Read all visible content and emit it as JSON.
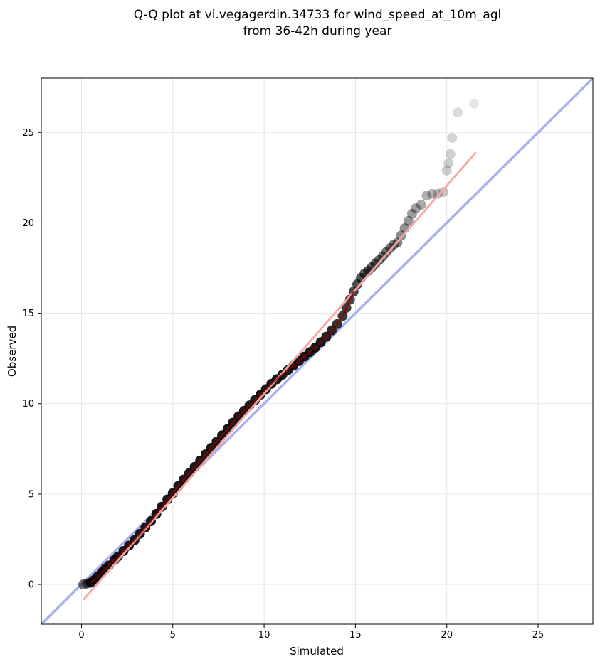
{
  "chart_data": {
    "type": "scatter",
    "title": "Q-Q plot at vi.vegagerdin.34733 for wind_speed_at_10m_agl",
    "subtitle": "from 36-42h during year",
    "xlabel": "Simulated",
    "ylabel": "Observed",
    "xlim": [
      -2.2,
      28
    ],
    "ylim": [
      -2.2,
      28
    ],
    "xticks": [
      0,
      5,
      10,
      15,
      20,
      25
    ],
    "yticks": [
      0,
      5,
      10,
      15,
      20,
      25
    ],
    "grid": true,
    "legend": "none",
    "colors": {
      "points": "#000000",
      "identity_line": "#aab0f0",
      "fit_line": "#f4a6a6",
      "dense_line": "#8b0000"
    },
    "identity_line": {
      "x": [
        -2.2,
        28
      ],
      "y": [
        -2.2,
        28
      ]
    },
    "fit_line": {
      "x": [
        0.1,
        21.6
      ],
      "y": [
        -0.85,
        23.9
      ]
    },
    "points": {
      "x": [
        0.1,
        0.3,
        0.5,
        0.7,
        0.9,
        1.1,
        1.3,
        1.5,
        1.8,
        2.0,
        2.3,
        2.6,
        2.9,
        3.2,
        3.5,
        3.8,
        4.1,
        4.4,
        4.7,
        5.0,
        5.3,
        5.6,
        5.9,
        6.2,
        6.5,
        6.8,
        7.1,
        7.4,
        7.7,
        8.0,
        8.3,
        8.6,
        8.9,
        9.2,
        9.5,
        9.8,
        10.1,
        10.4,
        10.7,
        11.0,
        11.3,
        11.6,
        11.9,
        12.2,
        12.5,
        12.8,
        13.1,
        13.4,
        13.7,
        14.0,
        14.3,
        14.5,
        14.7,
        14.9,
        15.1,
        15.3,
        15.5,
        15.7,
        15.9,
        16.1,
        16.3,
        16.5,
        16.7,
        16.9,
        17.1,
        17.3,
        17.5,
        17.7,
        17.9,
        18.1,
        18.3,
        18.6,
        18.9,
        19.2,
        19.5,
        19.8,
        20.0,
        20.1,
        20.2,
        20.3,
        20.6,
        21.5
      ],
      "y": [
        0.0,
        0.05,
        0.1,
        0.25,
        0.45,
        0.65,
        0.85,
        1.05,
        1.35,
        1.55,
        1.85,
        2.15,
        2.45,
        2.8,
        3.15,
        3.5,
        3.9,
        4.3,
        4.7,
        5.05,
        5.45,
        5.8,
        6.15,
        6.5,
        6.85,
        7.2,
        7.55,
        7.9,
        8.25,
        8.6,
        8.95,
        9.3,
        9.6,
        9.9,
        10.2,
        10.5,
        10.8,
        11.1,
        11.35,
        11.6,
        11.85,
        12.1,
        12.35,
        12.6,
        12.85,
        13.1,
        13.4,
        13.7,
        14.05,
        14.4,
        14.85,
        15.3,
        15.75,
        16.2,
        16.6,
        16.95,
        17.2,
        17.35,
        17.55,
        17.75,
        17.95,
        18.15,
        18.4,
        18.6,
        18.8,
        18.9,
        19.3,
        19.7,
        20.1,
        20.5,
        20.8,
        21.0,
        21.5,
        21.6,
        21.6,
        21.7,
        22.9,
        23.3,
        23.8,
        24.7,
        26.1,
        26.6
      ]
    }
  }
}
